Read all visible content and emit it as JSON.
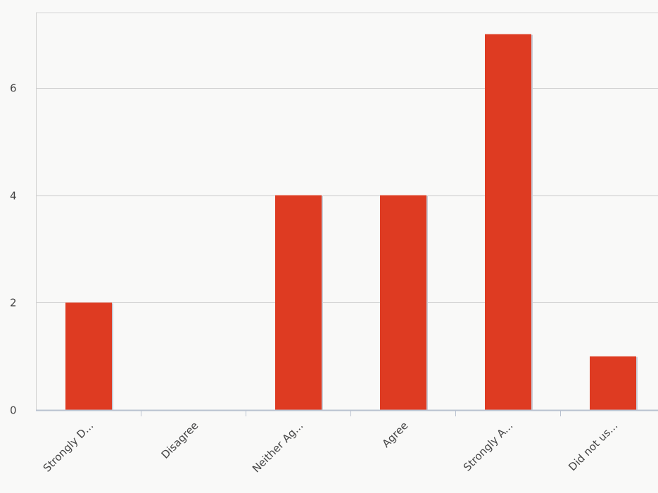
{
  "chart_data": {
    "type": "bar",
    "categories": [
      "Strongly D...",
      "Disagree",
      "Neither Ag...",
      "Agree",
      "Strongly A...",
      "Did not us..."
    ],
    "values": [
      2,
      0,
      4,
      4,
      7,
      1
    ],
    "title": "",
    "xlabel": "",
    "ylabel": "",
    "ylim": [
      0,
      7.4
    ],
    "yticks": [
      0,
      2,
      4,
      6
    ],
    "grid": true,
    "legend": "none",
    "colors": {
      "bar": "#de3b22",
      "bar_shadow": "#c8ccd6",
      "grid": "#c9c9c9",
      "axis": "#b9c2d0",
      "plot_bg": "#f9f9f8",
      "text": "#444444"
    }
  }
}
